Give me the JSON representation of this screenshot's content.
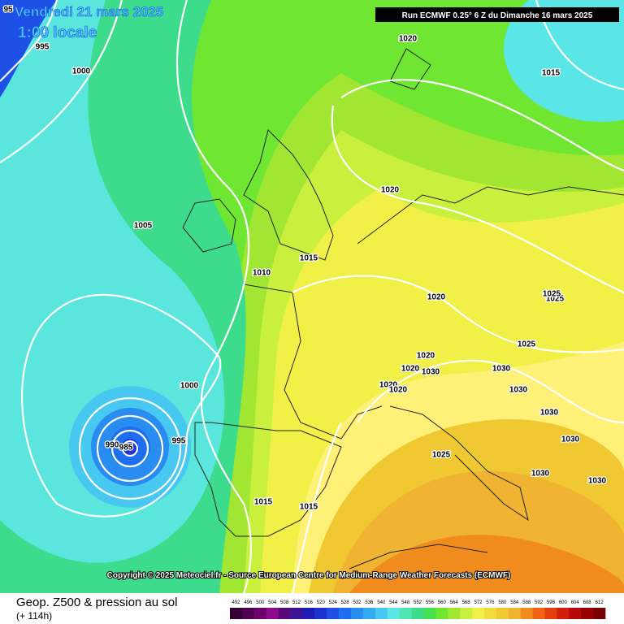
{
  "header": {
    "date": "Vendredi 21 mars 2025",
    "time": "1:00 locale",
    "run": "Run ECMWF 0.25° 6 Z du Dimanche 16 mars 2025"
  },
  "isobar_labels": [
    "95",
    "995",
    "1000",
    "1020",
    "1015",
    "1020",
    "1005",
    "1015",
    "1010",
    "1020",
    "1025",
    "1025",
    "1025",
    "1020",
    "1020",
    "1030",
    "1030",
    "1020",
    "1020",
    "1030",
    "1030",
    "1000",
    "995",
    "990",
    "985",
    "1025",
    "1030",
    "1030",
    "1030",
    "1015",
    "1015"
  ],
  "copyright": "Copyright © 2025 Meteociel.fr - Source European Centre for Medium-Range Weather Forecasts (ECMWF)",
  "footer": {
    "title": "Geop. Z500 & pression au sol",
    "lead": "(+ 114h)"
  },
  "colorbar": {
    "labels": [
      492,
      496,
      500,
      504,
      508,
      512,
      516,
      520,
      524,
      528,
      532,
      536,
      540,
      544,
      548,
      552,
      556,
      560,
      564,
      568,
      572,
      576,
      580,
      584,
      588,
      592,
      596,
      600,
      604,
      608,
      612
    ],
    "colors": [
      "#320032",
      "#500050",
      "#6e006e",
      "#8c0a8c",
      "#5a0a78",
      "#3c1496",
      "#1e1eb4",
      "#1e32d2",
      "#1e50e6",
      "#1e6ef0",
      "#288cf0",
      "#32aaf0",
      "#46c8f0",
      "#5ae6e6",
      "#50e6b4",
      "#3cdc8c",
      "#46e150",
      "#6ee632",
      "#a0e632",
      "#c8f03c",
      "#f0f046",
      "#f0dc3c",
      "#f0c832",
      "#f0b432",
      "#f08c1e",
      "#f06414",
      "#e63c0a",
      "#d21e0a",
      "#b40a0a",
      "#960000",
      "#780000"
    ]
  }
}
